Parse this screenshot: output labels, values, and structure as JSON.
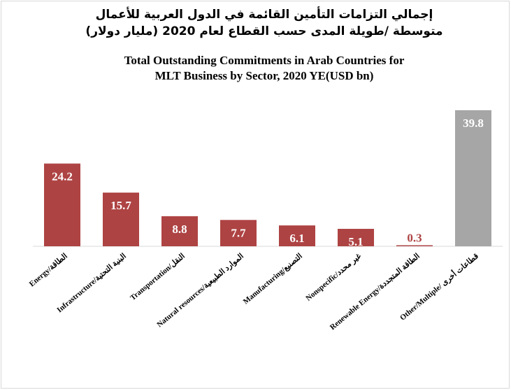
{
  "chart_data": {
    "type": "bar",
    "title": [
      "إجمالي التزامات التأمين القائمة في الدول العربية للأعمال",
      "متوسطة /طويلة المدى حسب القطاع لعام 2020 (مليار دولار)",
      "Total Outstanding Commitments in Arab Countries for",
      "MLT Business by Sector, 2020 YE(USD bn)"
    ],
    "categories": [
      "Energy/الطاقة",
      "Infrastructure/البنية التحتية",
      "Transportation/النقل",
      "Natural resources/الموارد الطبيعية",
      "Manufacturing/التصنيع",
      "Nonspecific/غير محدد",
      "Renewable Energy/الطاقة المتجددة",
      "Other/Multiple/ قطاعات أخرى"
    ],
    "values": [
      24.2,
      15.7,
      8.8,
      7.7,
      6.1,
      5.1,
      0.3,
      39.8
    ],
    "colors": [
      "#ae4343",
      "#ae4343",
      "#ae4343",
      "#ae4343",
      "#ae4343",
      "#ae4343",
      "#ae4343",
      "#a6a6a6"
    ]
  }
}
